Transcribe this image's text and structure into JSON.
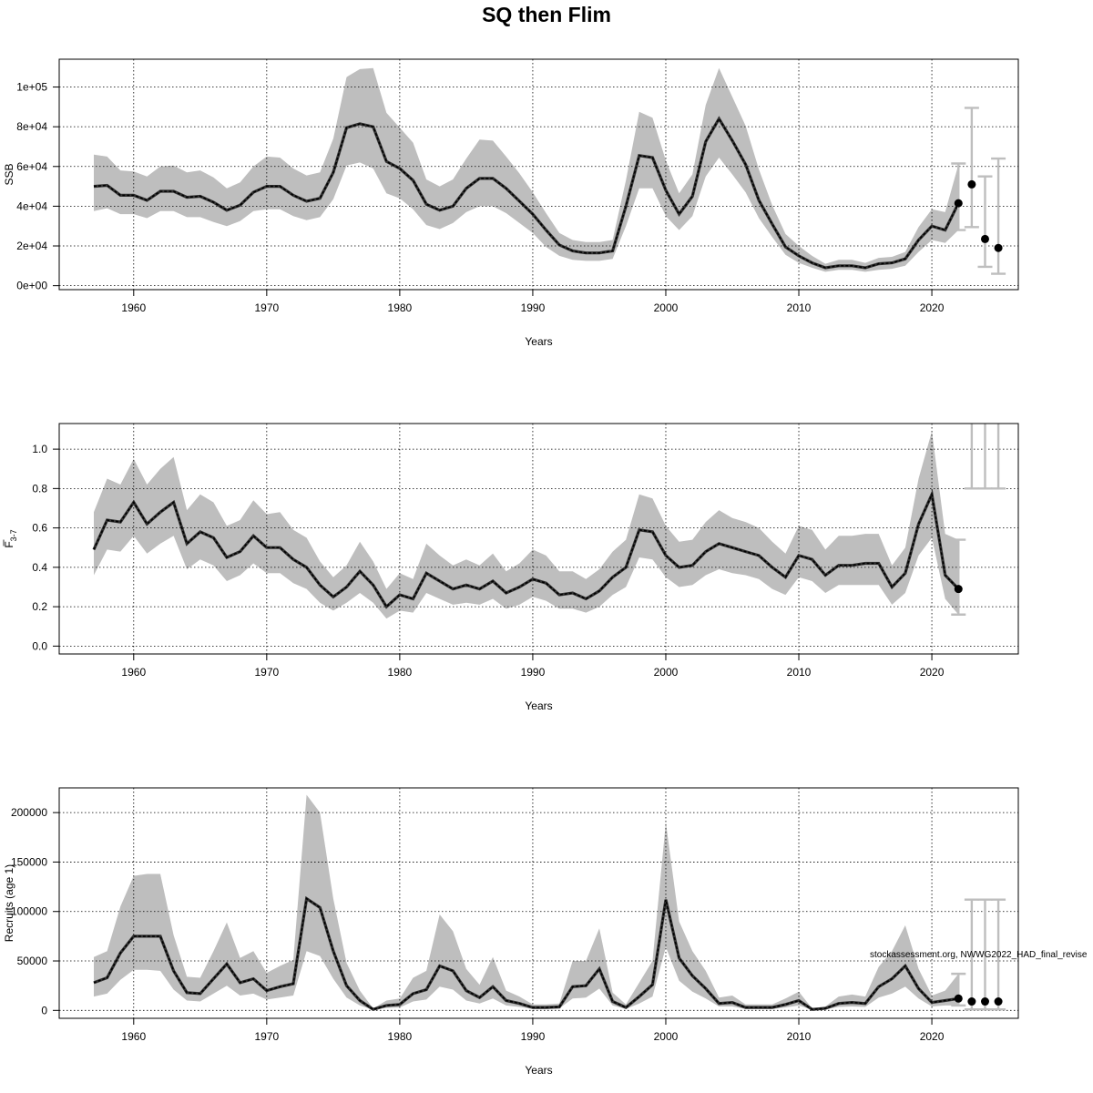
{
  "title": "SQ then Flim",
  "watermark": "stockassessment.org, NWWG2022_HAD_final_revise",
  "colors": {
    "band": "#bebebe",
    "line": "#000000",
    "errorbar": "#bebebe",
    "grid": "#000000"
  },
  "chart_data": [
    {
      "type": "line",
      "name": "ssb",
      "xlabel": "Years",
      "ylabel": "SSB",
      "xlim": [
        1954.4,
        2026.5
      ],
      "ylim": [
        -2000,
        114000
      ],
      "xticks": [
        1960,
        1970,
        1980,
        1990,
        2000,
        2010,
        2020
      ],
      "yticks": [
        0,
        20000,
        40000,
        60000,
        80000,
        100000
      ],
      "ytick_labels": [
        "0e+00",
        "2e+04",
        "4e+04",
        "6e+04",
        "8e+04",
        "1e+05"
      ],
      "grid": true,
      "x": [
        1957,
        1958,
        1959,
        1960,
        1961,
        1962,
        1963,
        1964,
        1965,
        1966,
        1967,
        1968,
        1969,
        1970,
        1971,
        1972,
        1973,
        1974,
        1975,
        1976,
        1977,
        1978,
        1979,
        1980,
        1981,
        1982,
        1983,
        1984,
        1985,
        1986,
        1987,
        1988,
        1989,
        1990,
        1991,
        1992,
        1993,
        1994,
        1995,
        1996,
        1997,
        1998,
        1999,
        2000,
        2001,
        2002,
        2003,
        2004,
        2005,
        2006,
        2007,
        2008,
        2009,
        2010,
        2011,
        2012,
        2013,
        2014,
        2015,
        2016,
        2017,
        2018,
        2019,
        2020,
        2021,
        2022
      ],
      "estimate": [
        50000,
        50500,
        45500,
        45500,
        43000,
        47500,
        47500,
        44500,
        45000,
        42000,
        38000,
        40500,
        47000,
        50000,
        50000,
        45500,
        42500,
        44000,
        57000,
        79500,
        81500,
        80000,
        62500,
        59000,
        53000,
        41000,
        38000,
        40000,
        49000,
        54000,
        54000,
        49000,
        42500,
        36000,
        28000,
        20500,
        17500,
        16500,
        16500,
        17500,
        40000,
        65500,
        64500,
        48000,
        36000,
        45000,
        72500,
        84000,
        73000,
        61000,
        43000,
        31000,
        19500,
        15000,
        11500,
        9000,
        10000,
        10000,
        9000,
        11000,
        11500,
        13500,
        23000,
        30000,
        28000,
        41500
      ],
      "lower": [
        37500,
        39000,
        36000,
        36000,
        34000,
        37500,
        37500,
        34500,
        34500,
        32000,
        30000,
        32500,
        37500,
        38500,
        38500,
        35000,
        33000,
        34500,
        43500,
        60500,
        62000,
        59000,
        46500,
        44000,
        38500,
        30500,
        28500,
        31500,
        37000,
        40000,
        40000,
        36500,
        31500,
        26500,
        19500,
        15000,
        13000,
        12500,
        12500,
        13500,
        30000,
        49000,
        49000,
        35000,
        28000,
        35000,
        55000,
        64500,
        56000,
        47000,
        34000,
        24500,
        15500,
        11500,
        9000,
        7000,
        8000,
        8000,
        7000,
        8000,
        8500,
        10000,
        17000,
        23000,
        21500,
        28000
      ],
      "upper": [
        66000,
        65000,
        58000,
        57500,
        55000,
        60000,
        60500,
        57000,
        58000,
        54500,
        49000,
        52000,
        60000,
        65000,
        64500,
        59000,
        55500,
        57000,
        74000,
        105000,
        109000,
        109500,
        87000,
        79500,
        72000,
        53500,
        50000,
        53500,
        64000,
        73500,
        73000,
        65000,
        56500,
        47000,
        36500,
        26500,
        23000,
        22000,
        22000,
        23000,
        53000,
        87500,
        84500,
        63000,
        46500,
        56000,
        91000,
        109500,
        95000,
        80500,
        58500,
        40500,
        26000,
        20000,
        15000,
        11000,
        13000,
        13000,
        11500,
        14000,
        14500,
        17000,
        29500,
        38500,
        37000,
        61000
      ],
      "forecast": {
        "x": [
          2022,
          2023,
          2024,
          2025
        ],
        "y": [
          41500,
          51000,
          23500,
          19000
        ],
        "lower": [
          28000,
          29500,
          9500,
          6000
        ],
        "upper": [
          61500,
          89500,
          55000,
          64000
        ]
      }
    },
    {
      "type": "line",
      "name": "fbar",
      "xlabel": "Years",
      "ylabel": "F̄3-7",
      "ylabel_main": "F",
      "ylabel_sub": "3-7",
      "xlim": [
        1954.4,
        2026.5
      ],
      "ylim": [
        -0.04,
        1.13
      ],
      "xticks": [
        1960,
        1970,
        1980,
        1990,
        2000,
        2010,
        2020
      ],
      "yticks": [
        0,
        0.2,
        0.4,
        0.6,
        0.8,
        1.0
      ],
      "ytick_labels": [
        "0.0",
        "0.2",
        "0.4",
        "0.6",
        "0.8",
        "1.0"
      ],
      "grid": true,
      "x": [
        1957,
        1958,
        1959,
        1960,
        1961,
        1962,
        1963,
        1964,
        1965,
        1966,
        1967,
        1968,
        1969,
        1970,
        1971,
        1972,
        1973,
        1974,
        1975,
        1976,
        1977,
        1978,
        1979,
        1980,
        1981,
        1982,
        1983,
        1984,
        1985,
        1986,
        1987,
        1988,
        1989,
        1990,
        1991,
        1992,
        1993,
        1994,
        1995,
        1996,
        1997,
        1998,
        1999,
        2000,
        2001,
        2002,
        2003,
        2004,
        2005,
        2006,
        2007,
        2008,
        2009,
        2010,
        2011,
        2012,
        2013,
        2014,
        2015,
        2016,
        2017,
        2018,
        2019,
        2020,
        2021,
        2022
      ],
      "estimate": [
        0.49,
        0.64,
        0.63,
        0.73,
        0.62,
        0.68,
        0.73,
        0.52,
        0.58,
        0.55,
        0.45,
        0.48,
        0.56,
        0.5,
        0.5,
        0.44,
        0.4,
        0.31,
        0.25,
        0.3,
        0.38,
        0.31,
        0.2,
        0.26,
        0.24,
        0.37,
        0.33,
        0.29,
        0.31,
        0.29,
        0.33,
        0.27,
        0.3,
        0.34,
        0.32,
        0.26,
        0.27,
        0.24,
        0.28,
        0.35,
        0.4,
        0.59,
        0.58,
        0.46,
        0.4,
        0.41,
        0.48,
        0.52,
        0.5,
        0.48,
        0.46,
        0.4,
        0.35,
        0.46,
        0.44,
        0.36,
        0.41,
        0.41,
        0.42,
        0.42,
        0.3,
        0.37,
        0.62,
        0.77,
        0.36,
        0.29
      ],
      "lower": [
        0.36,
        0.49,
        0.48,
        0.56,
        0.47,
        0.52,
        0.56,
        0.39,
        0.44,
        0.41,
        0.33,
        0.36,
        0.42,
        0.37,
        0.37,
        0.32,
        0.29,
        0.22,
        0.18,
        0.22,
        0.27,
        0.22,
        0.14,
        0.18,
        0.17,
        0.27,
        0.24,
        0.21,
        0.22,
        0.21,
        0.24,
        0.19,
        0.21,
        0.25,
        0.23,
        0.19,
        0.19,
        0.17,
        0.2,
        0.26,
        0.3,
        0.45,
        0.44,
        0.35,
        0.3,
        0.31,
        0.36,
        0.39,
        0.37,
        0.36,
        0.34,
        0.29,
        0.26,
        0.35,
        0.33,
        0.27,
        0.31,
        0.31,
        0.31,
        0.31,
        0.21,
        0.27,
        0.46,
        0.55,
        0.24,
        0.16
      ],
      "upper": [
        0.68,
        0.85,
        0.82,
        0.95,
        0.82,
        0.9,
        0.96,
        0.69,
        0.77,
        0.73,
        0.61,
        0.64,
        0.74,
        0.67,
        0.68,
        0.59,
        0.55,
        0.43,
        0.35,
        0.41,
        0.53,
        0.43,
        0.29,
        0.37,
        0.34,
        0.52,
        0.46,
        0.41,
        0.44,
        0.41,
        0.47,
        0.38,
        0.42,
        0.49,
        0.46,
        0.38,
        0.38,
        0.34,
        0.39,
        0.48,
        0.54,
        0.77,
        0.75,
        0.61,
        0.53,
        0.54,
        0.63,
        0.69,
        0.65,
        0.63,
        0.6,
        0.53,
        0.47,
        0.61,
        0.59,
        0.49,
        0.56,
        0.56,
        0.57,
        0.57,
        0.41,
        0.5,
        0.85,
        1.09,
        0.57,
        0.54
      ],
      "forecast": {
        "x": [
          2022,
          2023,
          2024,
          2025
        ],
        "y": [
          0.29,
          null,
          null,
          null
        ],
        "lower": [
          0.16,
          0.8,
          0.8,
          0.8
        ],
        "upper": [
          0.54,
          1.2,
          1.2,
          1.2
        ]
      }
    },
    {
      "type": "line",
      "name": "recruits",
      "xlabel": "Years",
      "ylabel": "Recruits (age 1)",
      "xlim": [
        1954.4,
        2026.5
      ],
      "ylim": [
        -8000,
        225000
      ],
      "xticks": [
        1960,
        1970,
        1980,
        1990,
        2000,
        2010,
        2020
      ],
      "yticks": [
        0,
        50000,
        100000,
        150000,
        200000
      ],
      "ytick_labels": [
        "0",
        "50000",
        "100000",
        "150000",
        "200000"
      ],
      "grid": true,
      "x": [
        1957,
        1958,
        1959,
        1960,
        1961,
        1962,
        1963,
        1964,
        1965,
        1966,
        1967,
        1968,
        1969,
        1970,
        1971,
        1972,
        1973,
        1974,
        1975,
        1976,
        1977,
        1978,
        1979,
        1980,
        1981,
        1982,
        1983,
        1984,
        1985,
        1986,
        1987,
        1988,
        1989,
        1990,
        1991,
        1992,
        1993,
        1994,
        1995,
        1996,
        1997,
        1998,
        1999,
        2000,
        2001,
        2002,
        2003,
        2004,
        2005,
        2006,
        2007,
        2008,
        2009,
        2010,
        2011,
        2012,
        2013,
        2014,
        2015,
        2016,
        2017,
        2018,
        2019,
        2020,
        2021,
        2022
      ],
      "estimate": [
        28000,
        33000,
        58000,
        75000,
        75000,
        75000,
        40000,
        18000,
        17000,
        32000,
        47000,
        28000,
        32000,
        20000,
        24000,
        27000,
        113000,
        104000,
        60000,
        25000,
        10000,
        1000,
        5000,
        6000,
        17000,
        21000,
        45000,
        40000,
        20000,
        13000,
        24000,
        10000,
        7000,
        3000,
        3000,
        3500,
        24000,
        25000,
        42000,
        9000,
        3000,
        14000,
        26000,
        112000,
        53000,
        35000,
        22000,
        7000,
        8000,
        3000,
        3000,
        3000,
        6000,
        10000,
        1000,
        2000,
        7000,
        8000,
        7000,
        24000,
        32000,
        45000,
        22000,
        8000,
        10000,
        12000
      ],
      "lower": [
        14000,
        17000,
        31000,
        41000,
        41000,
        40000,
        21000,
        10000,
        9000,
        17000,
        25000,
        15000,
        17000,
        11000,
        13000,
        15000,
        60000,
        55000,
        32000,
        13000,
        5000,
        500,
        2500,
        3000,
        9000,
        11000,
        24000,
        21000,
        10000,
        7000,
        12000,
        5000,
        3500,
        1500,
        1500,
        2000,
        12000,
        13000,
        22000,
        5000,
        1500,
        7000,
        14000,
        64000,
        30000,
        19000,
        12000,
        4000,
        4000,
        1500,
        1500,
        1500,
        3000,
        5000,
        500,
        1000,
        3500,
        4000,
        3500,
        13000,
        17000,
        24000,
        12000,
        4000,
        5000,
        5000
      ],
      "upper": [
        54000,
        60000,
        105000,
        136000,
        138000,
        138000,
        76000,
        34000,
        33000,
        60000,
        89000,
        53000,
        60000,
        38000,
        45000,
        51000,
        218000,
        200000,
        113000,
        48000,
        20000,
        2000,
        10000,
        12000,
        33000,
        40000,
        97000,
        80000,
        42000,
        26000,
        54000,
        20000,
        14000,
        6000,
        6000,
        7000,
        50000,
        50000,
        83000,
        18000,
        6000,
        28000,
        50000,
        190000,
        90000,
        60000,
        40000,
        13000,
        15000,
        6000,
        6000,
        6000,
        12000,
        19000,
        2000,
        4000,
        14000,
        16000,
        14000,
        44000,
        60000,
        86000,
        42000,
        15000,
        20000,
        37000
      ],
      "forecast": {
        "x": [
          2022,
          2023,
          2024,
          2025
        ],
        "y": [
          12000,
          9000,
          9000,
          9000
        ],
        "lower": [
          5000,
          1000,
          1000,
          1000
        ],
        "upper": [
          37000,
          112000,
          112000,
          112000
        ]
      }
    }
  ]
}
